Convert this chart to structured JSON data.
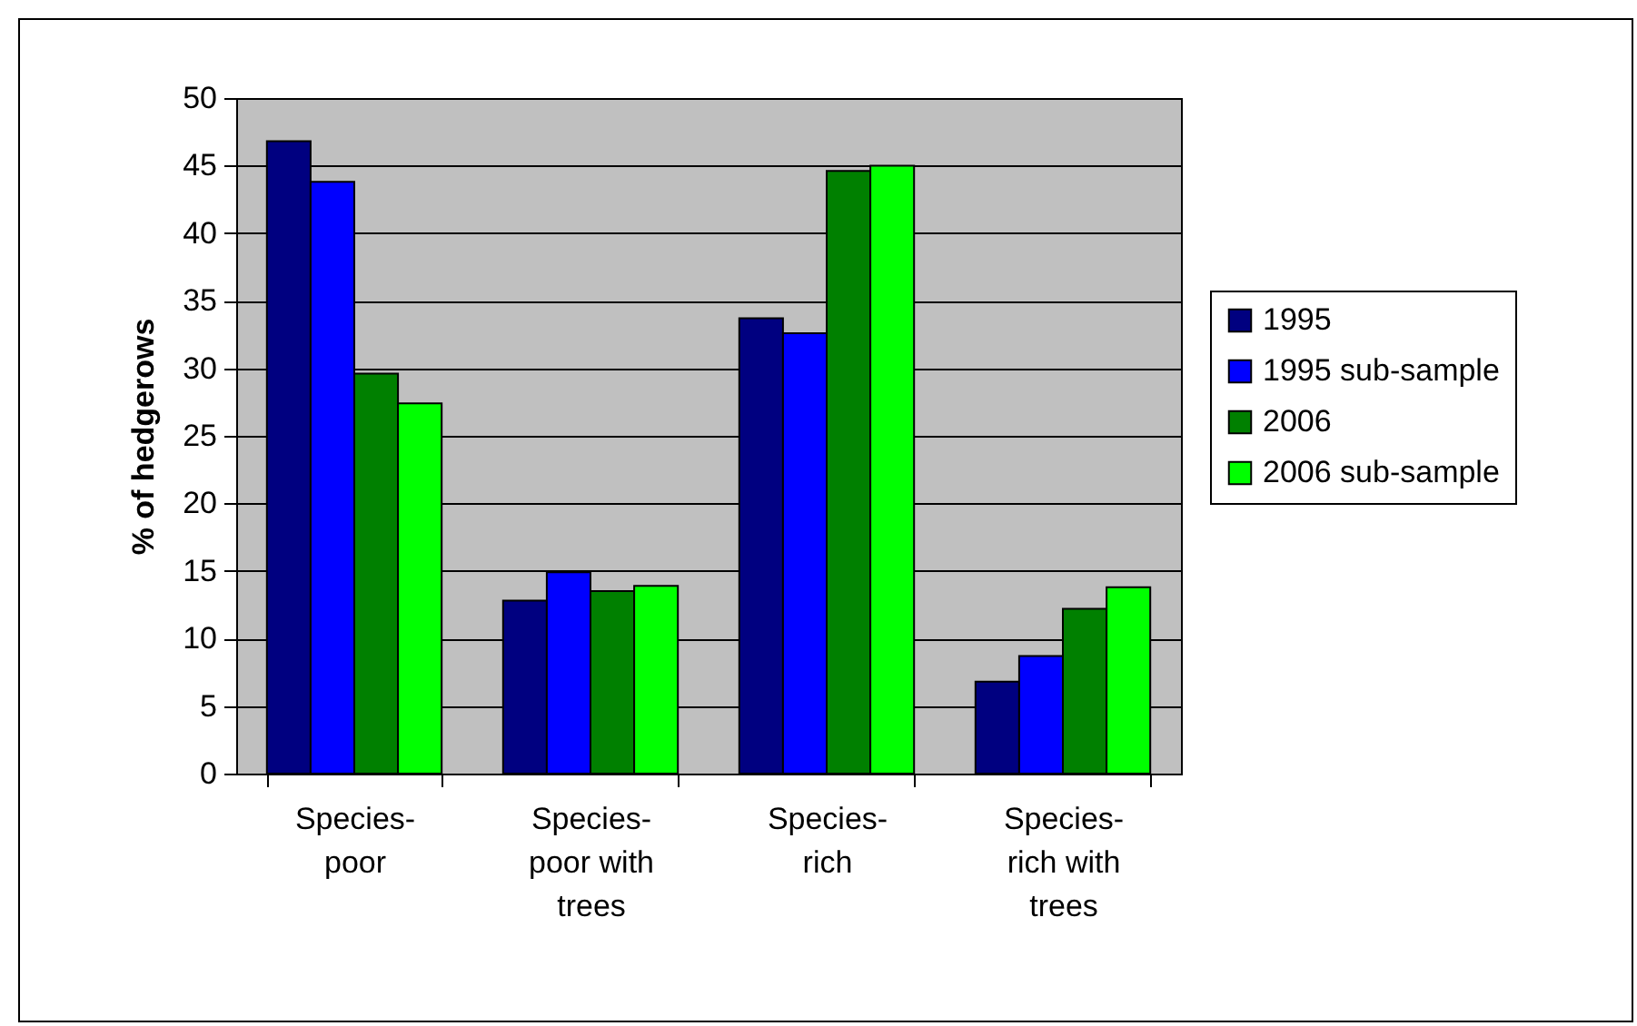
{
  "chart_data": {
    "type": "bar",
    "ylabel": "% of hedgerows",
    "categories": [
      "Species-poor",
      "Species-poor with trees",
      "Species-rich",
      "Species-rich with trees"
    ],
    "series": [
      {
        "name": "1995",
        "color": "#000080",
        "values": [
          46.8,
          12.8,
          33.7,
          6.8
        ]
      },
      {
        "name": "1995 sub-sample",
        "color": "#0000ff",
        "values": [
          43.8,
          14.9,
          32.6,
          8.7
        ]
      },
      {
        "name": "2006",
        "color": "#008000",
        "values": [
          29.6,
          13.5,
          44.6,
          12.2
        ]
      },
      {
        "name": "2006 sub-sample",
        "color": "#00ff00",
        "values": [
          27.4,
          13.9,
          45.0,
          13.8
        ]
      }
    ],
    "ylim": [
      0,
      50
    ],
    "yticks": [
      0,
      5,
      10,
      15,
      20,
      25,
      30,
      35,
      40,
      45,
      50
    ],
    "grid": "y",
    "legend": "right"
  }
}
